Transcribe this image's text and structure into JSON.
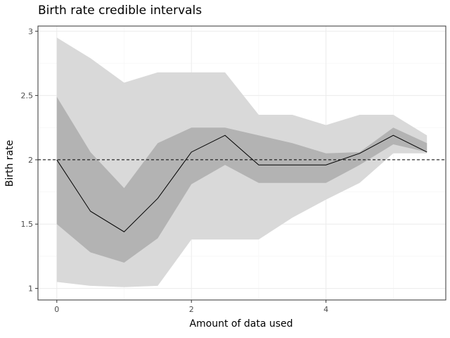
{
  "chart_data": {
    "type": "line",
    "title": "Birth rate credible intervals",
    "xlabel": "Amount of data used",
    "ylabel": "Birth rate",
    "xlim": [
      -0.28,
      5.78
    ],
    "ylim": [
      0.91,
      3.04
    ],
    "x_ticks": [
      {
        "value": 0,
        "label": "0"
      },
      {
        "value": 2,
        "label": "2"
      },
      {
        "value": 4,
        "label": "4"
      }
    ],
    "y_ticks": [
      {
        "value": 1,
        "label": "1"
      },
      {
        "value": 1.5,
        "label": "1.5"
      },
      {
        "value": 2,
        "label": "2"
      },
      {
        "value": 2.5,
        "label": "2.5"
      },
      {
        "value": 3,
        "label": "3"
      }
    ],
    "grid": true,
    "x": [
      0,
      0.5,
      1,
      1.5,
      2,
      2.5,
      3,
      3.5,
      4,
      4.5,
      5,
      5.5
    ],
    "series": [
      {
        "role": "outer_interval",
        "lower": [
          1.05,
          1.02,
          1.01,
          1.02,
          1.38,
          1.38,
          1.38,
          1.55,
          1.69,
          1.82,
          2.05,
          2.05
        ],
        "upper": [
          2.95,
          2.79,
          2.6,
          2.68,
          2.68,
          2.68,
          2.35,
          2.35,
          2.27,
          2.35,
          2.35,
          2.19
        ],
        "color": "#d9d9d9"
      },
      {
        "role": "inner_interval",
        "lower": [
          1.5,
          1.28,
          1.2,
          1.39,
          1.81,
          1.96,
          1.82,
          1.82,
          1.82,
          1.96,
          2.12,
          2.06
        ],
        "upper": [
          2.49,
          2.06,
          1.78,
          2.13,
          2.25,
          2.25,
          2.19,
          2.13,
          2.05,
          2.06,
          2.25,
          2.13
        ],
        "color": "#b3b3b3"
      },
      {
        "role": "median_line",
        "values": [
          2.0,
          1.6,
          1.44,
          1.7,
          2.06,
          2.19,
          1.96,
          1.96,
          1.96,
          2.05,
          2.19,
          2.06
        ],
        "color": "#000000"
      }
    ],
    "reference_line": {
      "y": 2.0,
      "style": "dashed",
      "color": "#000000"
    },
    "colors": {
      "panel_background": "#ffffff",
      "panel_border": "#333333",
      "grid_major": "#ebebeb",
      "grid_minor": "#f5f5f5",
      "tick_mark": "#333333"
    }
  }
}
